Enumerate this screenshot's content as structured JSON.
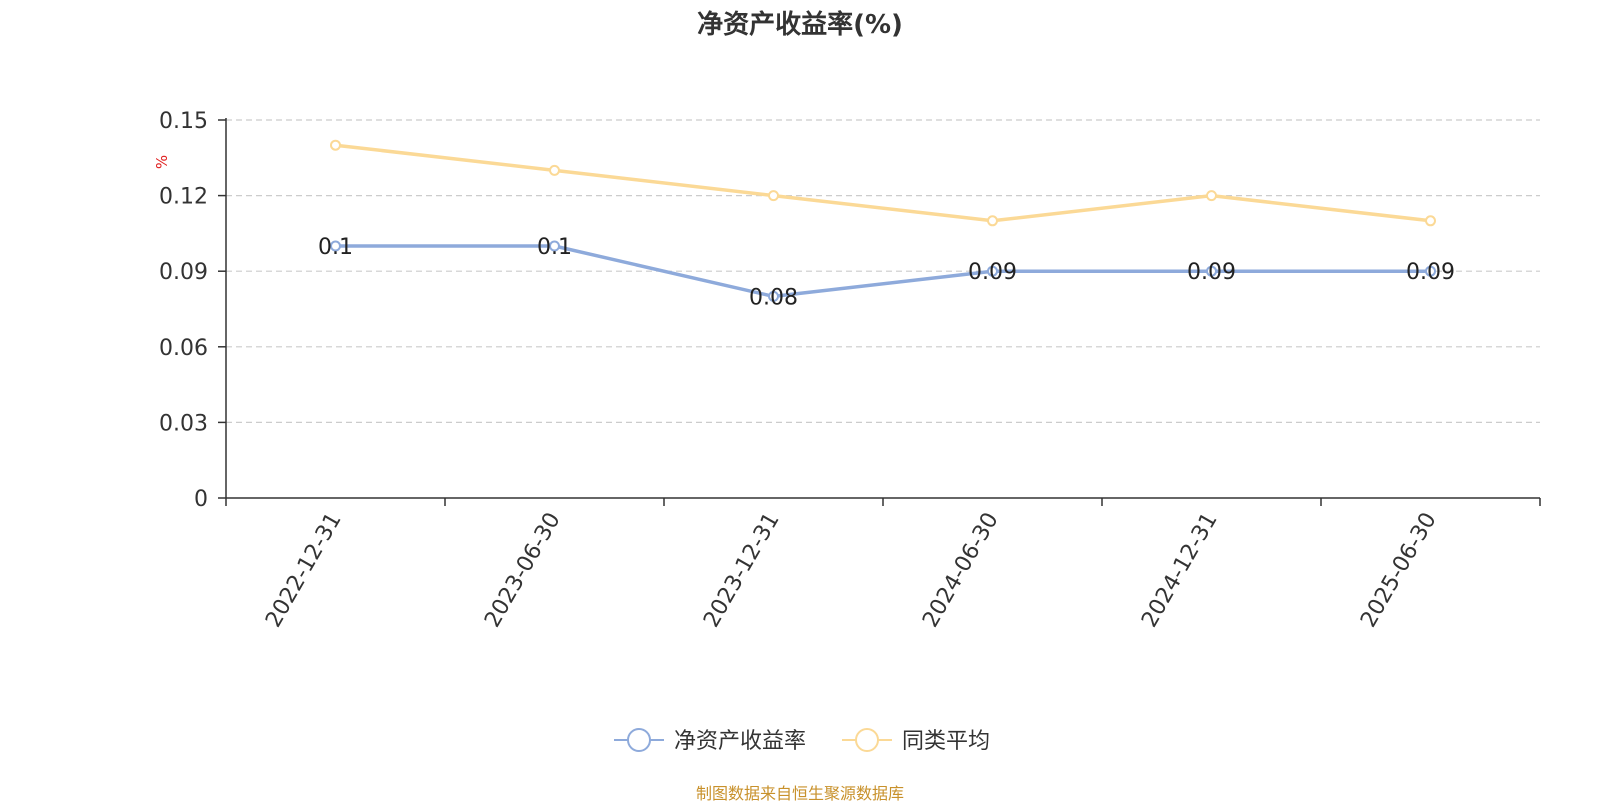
{
  "chart_data": {
    "type": "line",
    "title": "净资产收益率(%)",
    "ylabel": "%",
    "xlabel": "",
    "categories": [
      "2022-12-31",
      "2023-06-30",
      "2023-12-31",
      "2024-06-30",
      "2024-12-31",
      "2025-06-30"
    ],
    "y_ticks": [
      "0",
      "0.03",
      "0.06",
      "0.09",
      "0.12",
      "0.15"
    ],
    "ylim": [
      0,
      0.15
    ],
    "grid": true,
    "legend_position": "bottom",
    "series": [
      {
        "name": "净资产收益率",
        "values": [
          0.1,
          0.1,
          0.08,
          0.09,
          0.09,
          0.09
        ],
        "data_labels": [
          "0.1",
          "0.1",
          "0.08",
          "0.09",
          "0.09",
          "0.09"
        ],
        "color": "#8eaadb"
      },
      {
        "name": "同类平均",
        "values": [
          0.14,
          0.13,
          0.12,
          0.11,
          0.12,
          0.11
        ],
        "color": "#fbd996"
      }
    ]
  },
  "source_note": "制图数据来自恒生聚源数据库"
}
